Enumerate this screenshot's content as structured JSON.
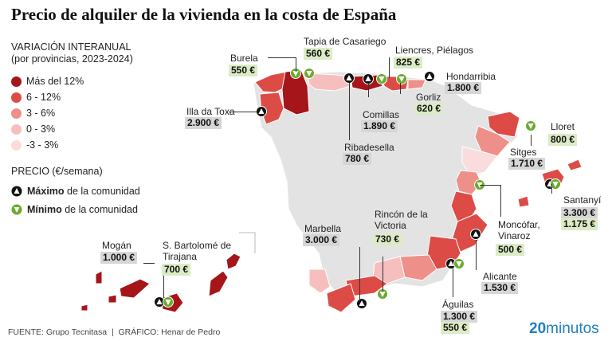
{
  "title": "Precio de alquiler de la vivienda en la costa de España",
  "legend": {
    "variation_title": "VARIACIÓN INTERANUAL",
    "variation_subtitle": "(por provincias, 2023-2024)",
    "classes": [
      {
        "label": "Más del 12%",
        "color": "#a5151a"
      },
      {
        "label": "6 - 12%",
        "color": "#dd4b47"
      },
      {
        "label": "3 - 6%",
        "color": "#ef8f89"
      },
      {
        "label": "0 - 3%",
        "color": "#f6bebd"
      },
      {
        "label": "-3 - 3%",
        "color": "#fadcdc"
      }
    ],
    "price_title": "PRECIO (€/semana)",
    "max_bold": "Máximo",
    "max_rest": " de la comunidad",
    "min_bold": "Mínimo",
    "min_rest": " de la comunidad",
    "max_color": "#111111",
    "min_color": "#6aab2f"
  },
  "places": {
    "burela": {
      "name": "Burela",
      "price": "550 €",
      "kind": "min"
    },
    "tapia": {
      "name": "Tapia de Casariego",
      "price": "560 €",
      "kind": "min"
    },
    "liencres": {
      "name": "Liencres, Piélagos",
      "price": "825 €",
      "kind": "min"
    },
    "hondarribia": {
      "name": "Hondarribia",
      "price": "1.800 €",
      "kind": "max"
    },
    "gorliz": {
      "name": "Gorliz",
      "price": "620 €",
      "kind": "min"
    },
    "comillas": {
      "name": "Comillas",
      "price": "1.890 €",
      "kind": "max"
    },
    "toxa": {
      "name": "Illa da Toxa",
      "price": "2.900 €",
      "kind": "max"
    },
    "ribadesella": {
      "name": "Ribadesella",
      "price": "780 €",
      "kind": "max"
    },
    "lloret": {
      "name": "Lloret",
      "price": "800 €",
      "kind": "min"
    },
    "sitges": {
      "name": "Sitges",
      "price": "1.710 €",
      "kind": "max"
    },
    "santanyi": {
      "name": "Santanyí",
      "price_max": "3.300 €",
      "price_min": "1.175 €"
    },
    "moncofar": {
      "name": "Moncófar, Vinaroz",
      "price": "500 €",
      "kind": "min"
    },
    "alicante": {
      "name": "Alicante",
      "price": "1.530 €",
      "kind": "max"
    },
    "aguilas": {
      "name": "Águilas",
      "price_max": "1.300 €",
      "price_min": "550 €"
    },
    "marbella": {
      "name": "Marbella",
      "price": "3.000 €",
      "kind": "max"
    },
    "rincon": {
      "name": "Rincón de la Victoria",
      "price": "730 €",
      "kind": "min"
    },
    "mogan": {
      "name": "Mogán",
      "price": "1.000 €",
      "kind": "max"
    },
    "bartolome": {
      "name": "S. Bartolomé de Tirajana",
      "price": "700 €",
      "kind": "min"
    }
  },
  "footer": "FUENTE: Grupo Tecnitasa  |  GRÁFICO: Henar de Pedro",
  "brand_number": "20",
  "brand_word": "minutos",
  "colors": {
    "land": "#e3e3e3",
    "brand": "#1f7fc1"
  }
}
